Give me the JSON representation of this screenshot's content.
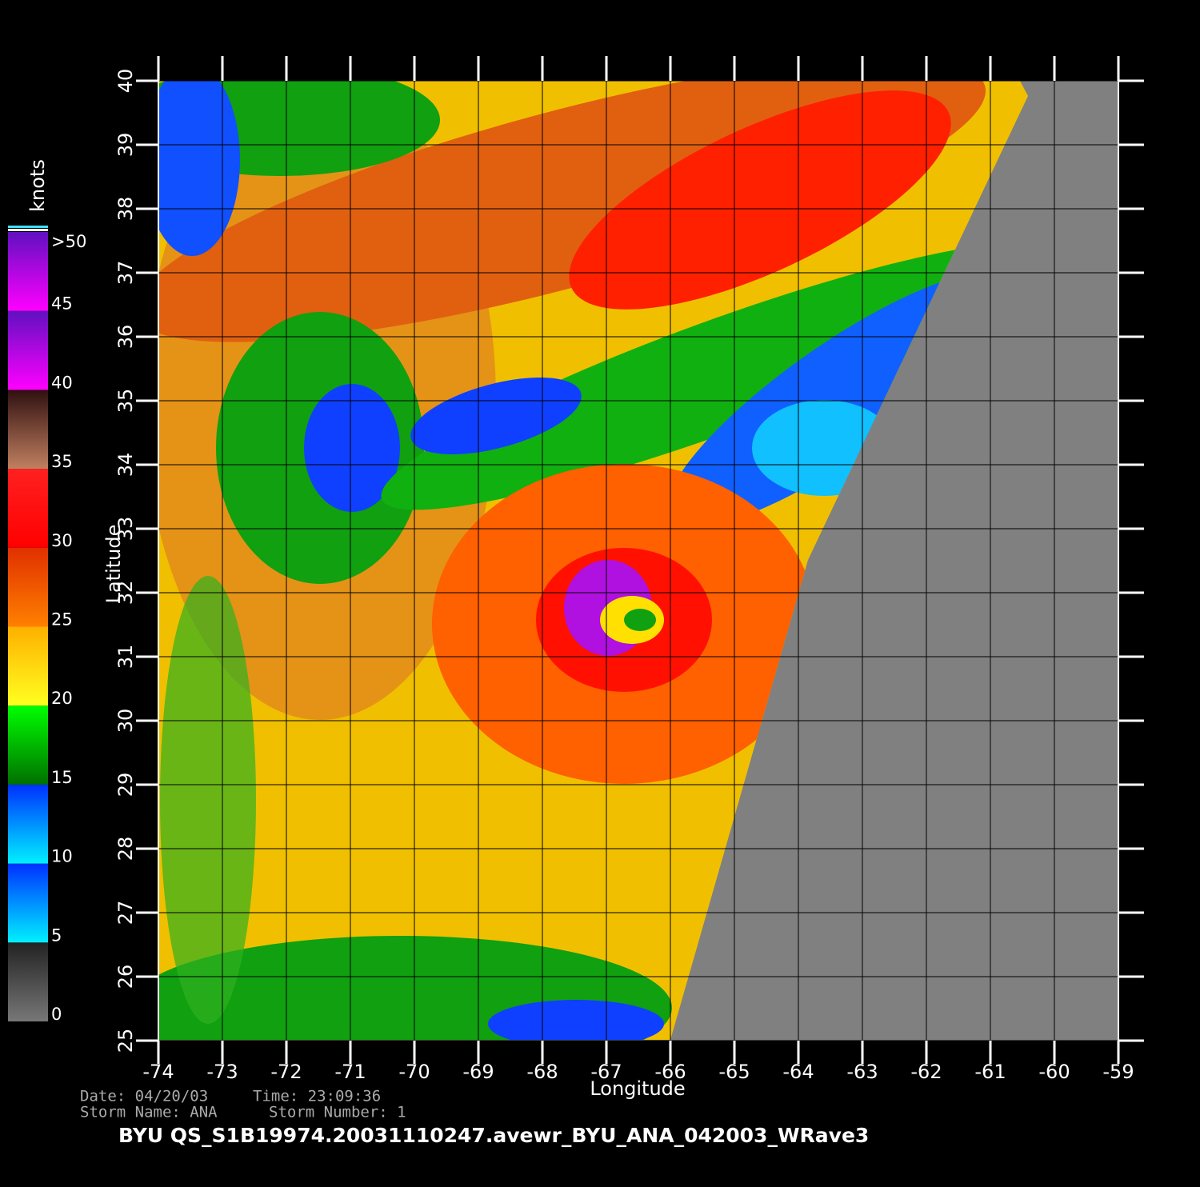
{
  "map": {
    "xlabel": "Longitude",
    "ylabel": "Latitude",
    "xlim": [
      -74,
      -59
    ],
    "ylim": [
      25,
      40
    ],
    "xticks": [
      -74,
      -73,
      -72,
      -71,
      -70,
      -69,
      -68,
      -67,
      -66,
      -65,
      -64,
      -63,
      -62,
      -61,
      -60,
      -59
    ],
    "yticks": [
      25,
      26,
      27,
      28,
      29,
      30,
      31,
      32,
      33,
      34,
      35,
      36,
      37,
      38,
      39,
      40
    ],
    "colorbar": {
      "label": "knots",
      "lim": [
        0,
        50
      ],
      "ticks": [
        0,
        5,
        10,
        15,
        20,
        25,
        30,
        35,
        40,
        45,
        {
          "value": 50,
          "label": ">50"
        }
      ]
    },
    "footer": {
      "date": "Date: 04/20/03",
      "time": "Time: 23:09:36",
      "storm_name": "Storm Name: ANA",
      "storm_number": "Storm Number: 1",
      "file": "BYU QS_S1B19974.20031110247.avewr_BYU_ANA_042003_WRave3"
    }
  }
}
